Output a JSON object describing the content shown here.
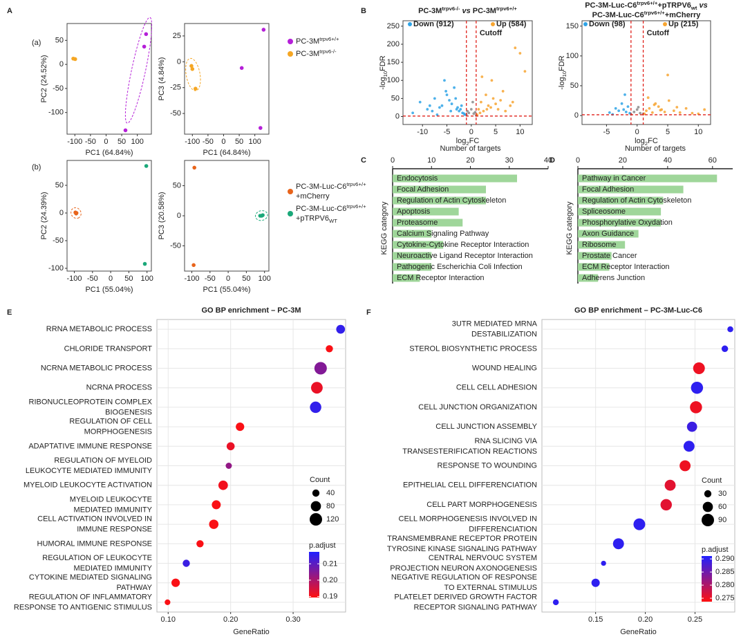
{
  "panel_labels": [
    "A",
    "B",
    "C",
    "D",
    "E",
    "F"
  ],
  "subpanel_labels": [
    "(a)",
    "(b)"
  ],
  "chart_data": [
    {
      "type": "scatter",
      "xlabel": "PC1 (64.84%)",
      "ylabel": "PC2 (24.52%)",
      "xlim": [
        -125,
        145
      ],
      "xticks": [
        -100,
        -50,
        0,
        50,
        100
      ],
      "ylim": [
        -145,
        85
      ],
      "yticks": [
        50,
        0,
        -50,
        -100
      ],
      "series": [
        {
          "color": "#b51fd8",
          "ellipse": true,
          "x": [
            128,
            122,
            62
          ],
          "y": [
            63,
            37,
            -137
          ]
        },
        {
          "color": "#f5a623",
          "x": [
            -105,
            -99
          ],
          "y": [
            12,
            11
          ]
        }
      ]
    },
    {
      "type": "scatter",
      "xlabel": "PC1 (64.84%)",
      "ylabel": "PC3 (4.84%)",
      "xlim": [
        -125,
        145
      ],
      "xticks": [
        -100,
        -50,
        0,
        50,
        100
      ],
      "ylim": [
        -70,
        37
      ],
      "yticks": [
        25,
        0,
        -25,
        -50
      ],
      "series": [
        {
          "name": [
            [
              {
                "text": "PC-3M"
              },
              {
                "text": "trpv6+/+",
                "style": "sup"
              }
            ]
          ],
          "color": "#b51fd8",
          "x": [
            128,
            58,
            118
          ],
          "y": [
            31,
            -6,
            -64
          ]
        },
        {
          "name": [
            [
              {
                "text": "PC-3M"
              },
              {
                "text": "trpv6-/-",
                "style": "sup"
              }
            ]
          ],
          "color": "#f5a623",
          "ellipse": true,
          "x": [
            -103,
            -100,
            -90
          ],
          "y": [
            -4,
            -7,
            -26
          ]
        }
      ]
    },
    {
      "type": "scatter",
      "xlabel": "PC1 (55.04%)",
      "ylabel": "PC2 (24.39%)",
      "xlim": [
        -120,
        112
      ],
      "xticks": [
        -100,
        -50,
        0,
        50,
        100
      ],
      "ylim": [
        -105,
        95
      ],
      "yticks": [
        50,
        0,
        -50,
        -100
      ],
      "series": [
        {
          "color": "#e8641b",
          "ellipse": true,
          "x": [
            -97,
            -94,
            -95
          ],
          "y": [
            1,
            0,
            -1
          ]
        },
        {
          "color": "#1aa879",
          "x": [
            98,
            94
          ],
          "y": [
            85,
            -92
          ]
        }
      ]
    },
    {
      "type": "scatter",
      "xlabel": "PC1 (55.04%)",
      "ylabel": "PC3 (20.58%)",
      "xlim": [
        -120,
        112
      ],
      "xticks": [
        -100,
        -50,
        0,
        50,
        100
      ],
      "ylim": [
        -92,
        92
      ],
      "yticks": [
        50,
        0,
        -50
      ],
      "series": [
        {
          "name": [
            [
              {
                "text": "PC-3M-Luc-C6"
              },
              {
                "text": "trpv6+/+",
                "style": "sup"
              }
            ],
            [
              {
                "text": "+mCherry"
              }
            ]
          ],
          "color": "#e8641b",
          "x": [
            -93,
            -95
          ],
          "y": [
            80,
            -82
          ]
        },
        {
          "name": [
            [
              {
                "text": "PC-3M-Luc-C6"
              },
              {
                "text": "trpv6+/+",
                "style": "sup"
              }
            ],
            [
              {
                "text": "+pTRPV6"
              },
              {
                "text": "WT",
                "style": "sub"
              }
            ]
          ],
          "color": "#1aa879",
          "ellipse": true,
          "x": [
            88,
            92,
            95
          ],
          "y": [
            0,
            0,
            1
          ]
        }
      ]
    },
    {
      "type": "volcano",
      "title": [
        [
          {
            "text": "PC-3M"
          },
          {
            "text": "trpv6-/-",
            "style": "sup"
          },
          {
            "text": " vs ",
            "style": "italic"
          },
          {
            "text": "PC-3M"
          },
          {
            "text": "trpv6+/+",
            "style": "sup"
          }
        ]
      ],
      "xlabel": [
        [
          {
            "text": "log"
          },
          {
            "text": "2",
            "style": "sub"
          },
          {
            "text": "FC"
          }
        ]
      ],
      "ylabel": [
        [
          {
            "text": "-log"
          },
          {
            "text": "10",
            "style": "sub"
          },
          {
            "text": "FDR"
          }
        ]
      ],
      "xlim": [
        -14,
        12.5
      ],
      "xticks": [
        -10,
        -5,
        0,
        5,
        10
      ],
      "ylim": [
        -22,
        265
      ],
      "yticks": [
        0,
        50,
        100,
        150,
        200,
        250
      ],
      "cutoff_label": "Cutoff",
      "cutoff_x": [
        -1,
        1
      ],
      "cutoff_y": 1.3,
      "series": [
        {
          "color": "#8a8a8a",
          "x": [
            -1,
            -0.5,
            0,
            0.5,
            1,
            -0.8,
            0.3,
            0.8
          ],
          "y": [
            5,
            10,
            20,
            8,
            3,
            15,
            40,
            12
          ]
        },
        {
          "name": "Down (912)",
          "color": "#2ea3e6",
          "x": [
            -12,
            -10.5,
            -9,
            -8,
            -7.5,
            -7,
            -6,
            -5.5,
            -5,
            -4.5,
            -4,
            -3.5,
            -3,
            -2.8,
            -2.5,
            -2,
            -1.8,
            -1.5,
            -6.5,
            -4.2,
            -3.2,
            -5.2,
            -2.2,
            -1.3,
            -8.5
          ],
          "y": [
            10,
            40,
            20,
            15,
            50,
            5,
            30,
            100,
            60,
            45,
            35,
            80,
            20,
            25,
            15,
            30,
            10,
            8,
            25,
            15,
            50,
            70,
            20,
            5,
            30
          ]
        },
        {
          "name": "Up (584)",
          "color": "#f7a531",
          "x": [
            1.2,
            1.5,
            2,
            2.5,
            3,
            3.5,
            4,
            4.5,
            5,
            5.5,
            6,
            7,
            8,
            9,
            10,
            2.2,
            3.2,
            1.8,
            4.2,
            6.5,
            11,
            8.5
          ],
          "y": [
            5,
            20,
            40,
            15,
            60,
            30,
            25,
            50,
            35,
            20,
            45,
            15,
            30,
            190,
            175,
            110,
            20,
            10,
            100,
            70,
            125,
            40
          ]
        }
      ]
    },
    {
      "type": "volcano",
      "title": [
        [
          {
            "text": "PC-3M-Luc-C6"
          },
          {
            "text": "trpv6+/+",
            "style": "sup"
          },
          {
            "text": "+pTRPV6"
          },
          {
            "text": "wt",
            "style": "sub"
          },
          {
            "text": " vs",
            "style": "italic"
          }
        ],
        [
          {
            "text": "PC-3M-Luc-C6"
          },
          {
            "text": "trpv6+/+",
            "style": "sup"
          },
          {
            "text": "+mCherry"
          }
        ]
      ],
      "xlabel": [
        [
          {
            "text": "log"
          },
          {
            "text": "2",
            "style": "sub"
          },
          {
            "text": "FC"
          }
        ]
      ],
      "ylabel": [
        [
          {
            "text": "-log"
          },
          {
            "text": "10",
            "style": "sub"
          },
          {
            "text": "FDR"
          }
        ]
      ],
      "xlim": [
        -9,
        12
      ],
      "xticks": [
        -5,
        0,
        5,
        10
      ],
      "ylim": [
        -15,
        159
      ],
      "yticks": [
        0,
        50,
        100,
        150
      ],
      "cutoff_label": "Cutoff",
      "cutoff_x": [
        -1,
        1
      ],
      "cutoff_y": 1.3,
      "series": [
        {
          "color": "#8a8a8a",
          "x": [
            -1,
            -0.5,
            0,
            0.5,
            1,
            0.2
          ],
          "y": [
            2,
            6,
            10,
            4,
            3,
            14
          ]
        },
        {
          "name": "Down (98)",
          "color": "#2ea3e6",
          "x": [
            -4.5,
            -3.5,
            -3,
            -2.5,
            -2,
            -1.8,
            -1.5,
            -1.2,
            -4,
            -2.2
          ],
          "y": [
            5,
            12,
            8,
            20,
            35,
            6,
            15,
            4,
            2,
            10
          ]
        },
        {
          "name": "Up (215)",
          "color": "#f7a531",
          "x": [
            1.2,
            1.5,
            2,
            2.5,
            3,
            3.5,
            4,
            4.5,
            5,
            5.2,
            6,
            7,
            8,
            9,
            10,
            11,
            1.8,
            2.8,
            3.8,
            6.5
          ],
          "y": [
            3,
            8,
            12,
            5,
            20,
            15,
            10,
            6,
            68,
            25,
            8,
            5,
            12,
            4,
            3,
            10,
            30,
            18,
            9,
            14
          ]
        }
      ]
    },
    {
      "type": "hbar",
      "xlabel": "Number of targets",
      "ylabel": "KEGG category",
      "color": "#9fd69a",
      "xlim": [
        0,
        40
      ],
      "xticks": [
        0,
        10,
        20,
        30,
        40
      ],
      "categories": [
        "Endocytosis",
        "Focal Adhesion",
        "Regulation of Actin Cytoskeleton",
        "Apoptosis",
        "Proteasome",
        "Calcium Signaling Pathway",
        "Cytokine-Cytokine Receptor Interaction",
        "Neuroactive Ligand Receptor Interaction",
        "Pathogenic Escherichia Coli Infection",
        "ECM Receptor Interaction"
      ],
      "values": [
        32,
        24,
        24,
        17,
        18,
        10,
        13,
        10,
        10,
        7
      ]
    },
    {
      "type": "hbar",
      "xlabel": "Number of targets",
      "ylabel": "KEGG category",
      "color": "#9fd69a",
      "xlim": [
        0,
        69
      ],
      "xticks": [
        0,
        20,
        40,
        60
      ],
      "categories": [
        "Pathway in Cancer",
        "Focal Adhesion",
        "Regulation of Actin Cytoskeleton",
        "Spliceosome",
        "Phosphorylative Oxydation",
        "Axon Guidance",
        "Ribosome",
        "Prostate Cancer",
        "ECM Receptor Interaction",
        "Adherens Junction"
      ],
      "values": [
        62,
        47,
        38,
        37,
        37,
        27,
        21,
        15,
        14,
        9
      ]
    },
    {
      "type": "dot",
      "title": "GO BP enrichment – PC-3M",
      "xlabel": "GeneRatio",
      "grid": true,
      "xlim": [
        0.082,
        0.384
      ],
      "xticks": [
        {
          "value": 0.1,
          "label": "0.10"
        },
        {
          "value": 0.2,
          "label": "0.20"
        },
        {
          "value": 0.3,
          "label": "0.30"
        }
      ],
      "categories": [
        [
          "RRNA METABOLIC PROCESS"
        ],
        [
          "CHLORIDE TRANSPORT"
        ],
        [
          "NCRNA METABOLIC PROCESS"
        ],
        [
          "NCRNA PROCESS"
        ],
        [
          "RIBONUCLEOPROTEIN COMPLEX",
          "BIOGENESIS"
        ],
        [
          "REGULATION OF CELL",
          "MORPHOGENESIS"
        ],
        [
          "ADAPTATIVE IMMUNE RESPONSE"
        ],
        [
          "REGULATION OF MYELOID",
          "LEUKOCYTE MEDIATED IMMUNITY"
        ],
        [
          "MYELOID LEUKOCYTE ACTIVATION"
        ],
        [
          "MYELOID LEUKOCYTE",
          "MEDIATED IMMUNITY"
        ],
        [
          "CELL ACTIVATION INVOLVED IN",
          "IMMUNE RESPONSE"
        ],
        [
          "HUMORAL IMMUNE RESPONSE"
        ],
        [
          "REGULATION OF LEUKOCYTE",
          "MEDIATED IMMUNITY"
        ],
        [
          "CYTOKINE MEDIATED SIGNALING",
          "PATHWAY"
        ],
        [
          "REGULATION OF INFLAMMATORY",
          "RESPONSE TO ANTIGENIC STIMULUS"
        ]
      ],
      "values": [
        0.376,
        0.358,
        0.344,
        0.338,
        0.336,
        0.215,
        0.2,
        0.197,
        0.188,
        0.177,
        0.173,
        0.151,
        0.129,
        0.112,
        0.099
      ],
      "sizes": [
        60,
        40,
        120,
        105,
        100,
        55,
        50,
        30,
        70,
        62,
        68,
        40,
        40,
        55,
        25
      ],
      "padjust": [
        0.215,
        0.19,
        0.205,
        0.192,
        0.215,
        0.19,
        0.192,
        0.203,
        0.191,
        0.19,
        0.19,
        0.19,
        0.214,
        0.19,
        0.19
      ],
      "size_legend_title": "Count",
      "size_legend": [
        40,
        80,
        120
      ],
      "color_legend_title": "p.adjust",
      "clim": [
        0.1894,
        0.2173
      ],
      "cticks": [
        0.21,
        {
          "value": 0.2,
          "label": "0.20"
        },
        0.19
      ],
      "colors": [
        "#ff1010",
        "#2020ff"
      ]
    },
    {
      "type": "dot",
      "title": "GO BP enrichment – PC-3M-Luc-C6",
      "xlabel": "GeneRatio",
      "grid": true,
      "xlim": [
        0.096,
        0.29
      ],
      "xticks": [
        0.15,
        {
          "value": 0.2,
          "label": "0.20"
        },
        0.25
      ],
      "categories": [
        [
          "3UTR MEDIATED MRNA",
          "DESTABILIZATION"
        ],
        [
          "STEROL BIOSYNTHETIC PROCESS"
        ],
        [
          "WOUND HEALING"
        ],
        [
          "CELL CELL ADHESION"
        ],
        [
          "CELL JUNCTION ORGANIZATION"
        ],
        [
          "CELL JUNCTION ASSEMBLY"
        ],
        [
          "RNA SLICING VIA",
          "TRANSESTERIFICATION REACTIONS"
        ],
        [
          "RESPONSE TO WOUNDING"
        ],
        [
          "EPITHELIAL CELL DIFFERENCIATION"
        ],
        [
          "CELL PART MORPHOGENESIS"
        ],
        [
          "CELL MORPHOGENESIS INVOLVED IN",
          "DIFFERENCIATION"
        ],
        [
          "TRANSMEMBRANE RECEPTOR PROTEIN",
          "TYROSINE KINASE SIGNALING PATHWAY"
        ],
        [
          "CENTRAL NERVOUC SYSTEM",
          "PROJECTION NEURON AXONOGENESIS"
        ],
        [
          "NEGATIVE REGULATION OF RESPONSE",
          "TO EXTERNAL STIMULUS"
        ],
        [
          "PLATELET DERIVED GROWTH FACTOR",
          "RECEPTOR SIGNALING PATHWAY"
        ]
      ],
      "values": [
        0.2855,
        0.28,
        0.254,
        0.252,
        0.251,
        0.247,
        0.244,
        0.24,
        0.225,
        0.221,
        0.194,
        0.173,
        0.158,
        0.15,
        0.11
      ],
      "sizes": [
        20,
        25,
        80,
        85,
        85,
        60,
        70,
        70,
        70,
        75,
        80,
        70,
        15,
        40,
        20
      ],
      "padjust": [
        0.29,
        0.29,
        0.275,
        0.29,
        0.275,
        0.289,
        0.29,
        0.275,
        0.276,
        0.276,
        0.29,
        0.29,
        0.29,
        0.29,
        0.29
      ],
      "size_legend_title": "Count",
      "size_legend": [
        30,
        60,
        90
      ],
      "color_legend_title": "p.adjust",
      "clim": [
        0.2737,
        0.2911
      ],
      "cticks": [
        {
          "value": 0.29,
          "label": "0.290"
        },
        0.285,
        {
          "value": 0.28,
          "label": "0.280"
        },
        0.275
      ],
      "colors": [
        "#ff1010",
        "#2020ff"
      ]
    }
  ]
}
